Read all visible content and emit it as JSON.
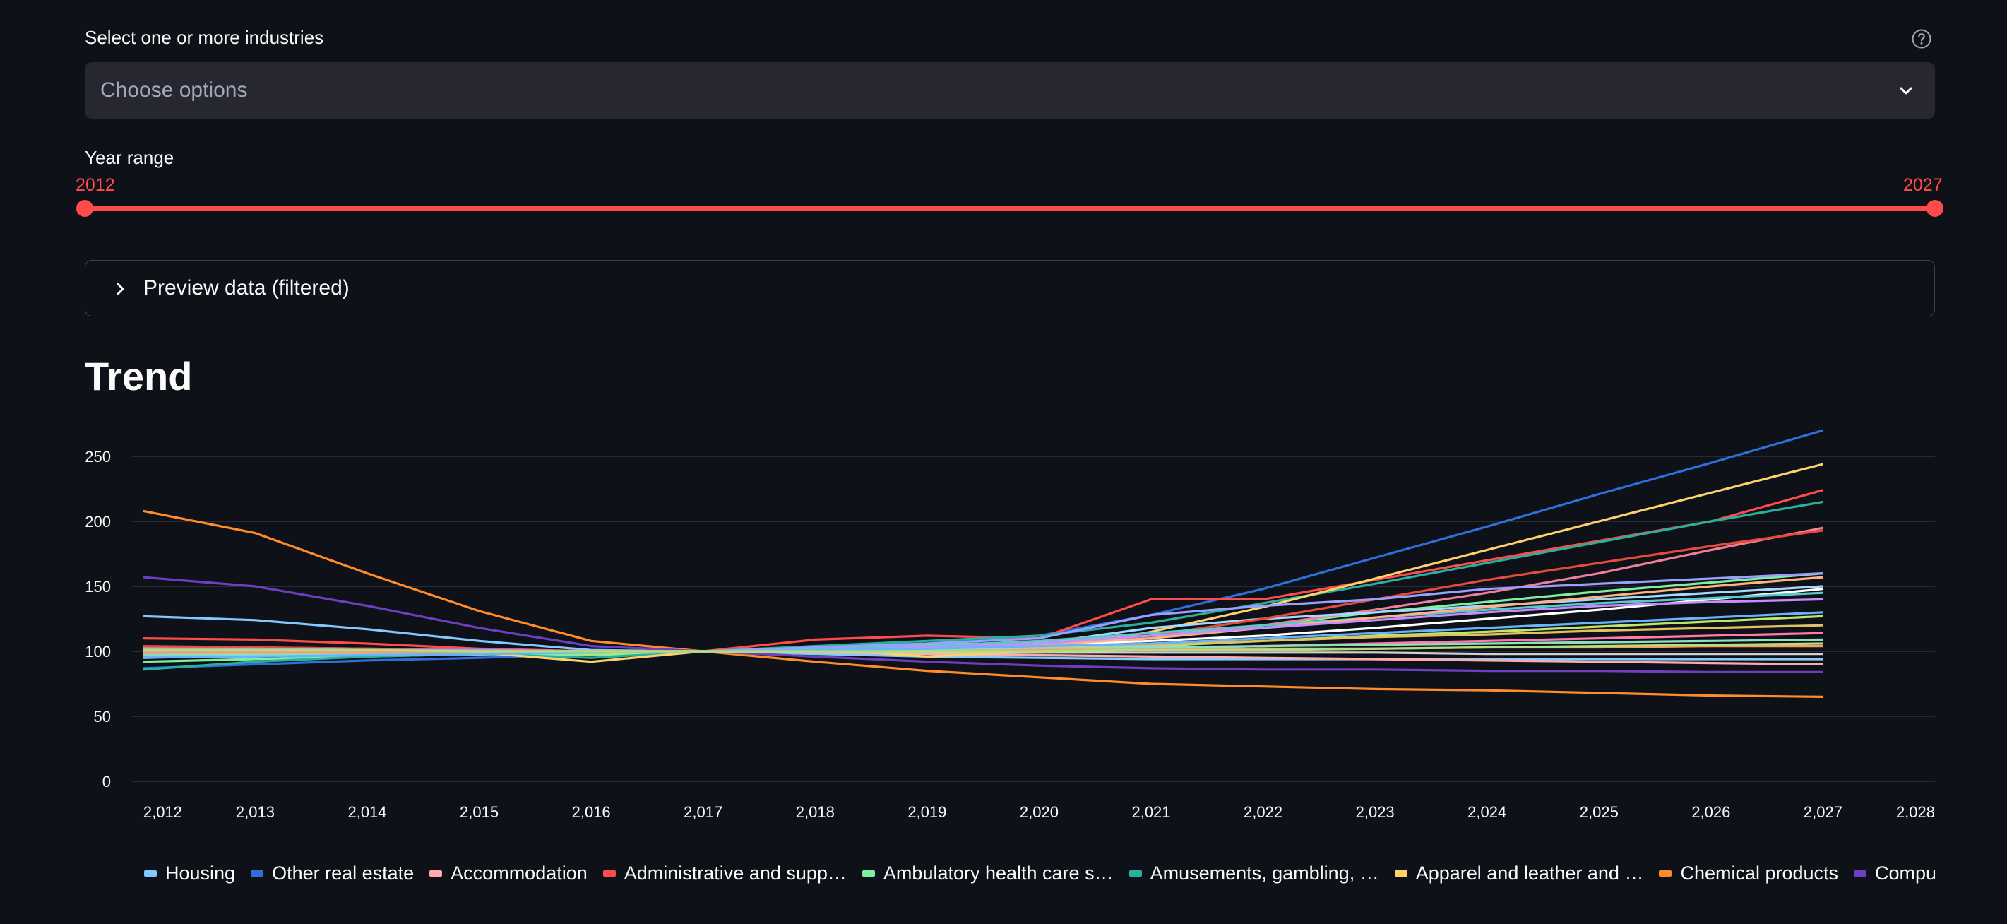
{
  "filters": {
    "industry_label": "Select one or more industries",
    "industry_placeholder": "Choose options",
    "year_label": "Year range",
    "year_min": "2012",
    "year_max": "2027"
  },
  "expander": {
    "label": "Preview data (filtered)"
  },
  "trend": {
    "heading": "Trend"
  },
  "icons": {
    "help": "help-circle-icon",
    "select": "chevron-down-icon",
    "expander": "chevron-right-icon"
  },
  "colors": {
    "accent": "#ff4b4b",
    "background": "#0e1117",
    "input_bg": "#262730"
  },
  "chart_data": {
    "type": "line",
    "x": [
      2012,
      2013,
      2014,
      2015,
      2016,
      2017,
      2018,
      2019,
      2020,
      2021,
      2022,
      2023,
      2024,
      2025,
      2026,
      2027
    ],
    "x_tick_labels": [
      "2,012",
      "2,013",
      "2,014",
      "2,015",
      "2,016",
      "2,017",
      "2,018",
      "2,019",
      "2,020",
      "2,021",
      "2,022",
      "2,023",
      "2,024",
      "2,025",
      "2,026",
      "2,027",
      "2,028"
    ],
    "y_tick_labels": [
      "0",
      "50",
      "100",
      "150",
      "200",
      "250"
    ],
    "xlim": [
      2011.9,
      2028
    ],
    "ylim": [
      0,
      275
    ],
    "grid": true,
    "legend": "bottom",
    "legend_labels": [
      "Housing",
      "Other real estate",
      "Accommodation",
      "Administrative and supp…",
      "Ambulatory health care s…",
      "Amusements, gambling, …",
      "Apparel and leather and …",
      "Chemical products",
      "Comput"
    ],
    "series": [
      {
        "name": "Housing",
        "color": "#83c9ff",
        "values": [
          127,
          124,
          117,
          108,
          101,
          100,
          98,
          96,
          95,
          94,
          94,
          94,
          94,
          94,
          94,
          94
        ]
      },
      {
        "name": "Other real estate",
        "color": "#2e6fd9",
        "values": [
          87,
          90,
          93,
          95,
          98,
          100,
          103,
          106,
          112,
          128,
          148,
          172,
          196,
          221,
          245,
          270
        ]
      },
      {
        "name": "Accommodation",
        "color": "#ffabab",
        "values": [
          100,
          99,
          98,
          97,
          98,
          100,
          99,
          98,
          97,
          96,
          95,
          94,
          93,
          92,
          91,
          90
        ]
      },
      {
        "name": "Administrative and supp…",
        "color": "#ff4b4b",
        "values": [
          110,
          109,
          106,
          102,
          100,
          100,
          109,
          112,
          110,
          140,
          140,
          155,
          170,
          185,
          200,
          224
        ]
      },
      {
        "name": "Ambulatory health care s…",
        "color": "#7defa1",
        "values": [
          92,
          94,
          96,
          98,
          97,
          100,
          103,
          105,
          107,
          112,
          120,
          130,
          138,
          146,
          153,
          160
        ]
      },
      {
        "name": "Amusements, gambling, …",
        "color": "#29b09d",
        "values": [
          86,
          92,
          96,
          98,
          95,
          100,
          104,
          108,
          112,
          122,
          137,
          152,
          168,
          184,
          200,
          215
        ]
      },
      {
        "name": "Apparel and leather and …",
        "color": "#ffd16a",
        "values": [
          98,
          99,
          100,
          99,
          92,
          100,
          102,
          96,
          100,
          115,
          134,
          156,
          178,
          200,
          222,
          244
        ]
      },
      {
        "name": "Chemical products",
        "color": "#ff8c2a",
        "values": [
          208,
          191,
          160,
          131,
          108,
          100,
          92,
          85,
          80,
          75,
          73,
          71,
          70,
          68,
          66,
          65
        ]
      },
      {
        "name": "Comput",
        "color": "#6d3fc0",
        "values": [
          157,
          150,
          135,
          118,
          104,
          100,
          96,
          92,
          89,
          87,
          86,
          86,
          85,
          85,
          84,
          84
        ]
      },
      {
        "color": "#f07d9a",
        "values": [
          103,
          103,
          102,
          101,
          100,
          100,
          101,
          102,
          105,
          110,
          120,
          132,
          145,
          160,
          178,
          195
        ]
      },
      {
        "color": "#a3d9ff",
        "values": [
          95,
          97,
          98,
          99,
          99,
          100,
          101,
          103,
          106,
          118,
          125,
          130,
          135,
          140,
          145,
          150
        ]
      },
      {
        "color": "#e64a3b",
        "values": [
          104,
          103,
          102,
          101,
          100,
          100,
          101,
          103,
          106,
          112,
          125,
          140,
          155,
          168,
          181,
          193
        ]
      },
      {
        "color": "#ffffff",
        "values": [
          100,
          100,
          100,
          100,
          100,
          100,
          101,
          103,
          105,
          108,
          112,
          118,
          125,
          132,
          140,
          148
        ]
      },
      {
        "color": "#bde66b",
        "values": [
          99,
          100,
          100,
          100,
          98,
          100,
          101,
          99,
          101,
          104,
          108,
          112,
          115,
          119,
          123,
          127
        ]
      },
      {
        "color": "#5ac8c8",
        "values": [
          101,
          101,
          100,
          100,
          100,
          100,
          102,
          104,
          108,
          114,
          120,
          126,
          132,
          137,
          141,
          145
        ]
      },
      {
        "color": "#ffb380",
        "values": [
          100,
          100,
          100,
          99,
          99,
          100,
          101,
          102,
          105,
          110,
          118,
          126,
          134,
          142,
          150,
          157
        ]
      },
      {
        "color": "#c78cff",
        "values": [
          98,
          98,
          99,
          99,
          100,
          100,
          101,
          103,
          106,
          112,
          118,
          124,
          130,
          135,
          138,
          140
        ]
      },
      {
        "color": "#9aa0ff",
        "values": [
          102,
          102,
          101,
          101,
          100,
          100,
          103,
          106,
          110,
          128,
          135,
          140,
          148,
          152,
          156,
          160
        ]
      },
      {
        "color": "#e0c060",
        "values": [
          100,
          100,
          99,
          99,
          99,
          100,
          101,
          102,
          103,
          105,
          108,
          111,
          113,
          116,
          118,
          120
        ]
      },
      {
        "color": "#ff7aa8",
        "values": [
          101,
          101,
          100,
          100,
          100,
          100,
          100,
          100,
          101,
          102,
          104,
          106,
          108,
          110,
          112,
          114
        ]
      },
      {
        "color": "#8be0c0",
        "values": [
          97,
          98,
          98,
          99,
          99,
          100,
          100,
          101,
          102,
          103,
          104,
          105,
          106,
          107,
          108,
          109
        ]
      },
      {
        "color": "#d0d0d0",
        "values": [
          100,
          100,
          100,
          100,
          100,
          100,
          99,
          99,
          99,
          99,
          99,
          99,
          98,
          98,
          98,
          98
        ]
      },
      {
        "color": "#ff9966",
        "values": [
          99,
          99,
          99,
          100,
          100,
          100,
          100,
          100,
          101,
          101,
          102,
          102,
          103,
          103,
          104,
          104
        ]
      },
      {
        "color": "#66b3ff",
        "values": [
          96,
          96,
          97,
          98,
          99,
          100,
          101,
          102,
          104,
          106,
          110,
          114,
          118,
          122,
          126,
          130
        ]
      },
      {
        "color": "#b0e07a",
        "values": [
          101,
          101,
          101,
          100,
          100,
          100,
          100,
          100,
          100,
          101,
          101,
          102,
          103,
          104,
          105,
          106
        ]
      }
    ]
  }
}
